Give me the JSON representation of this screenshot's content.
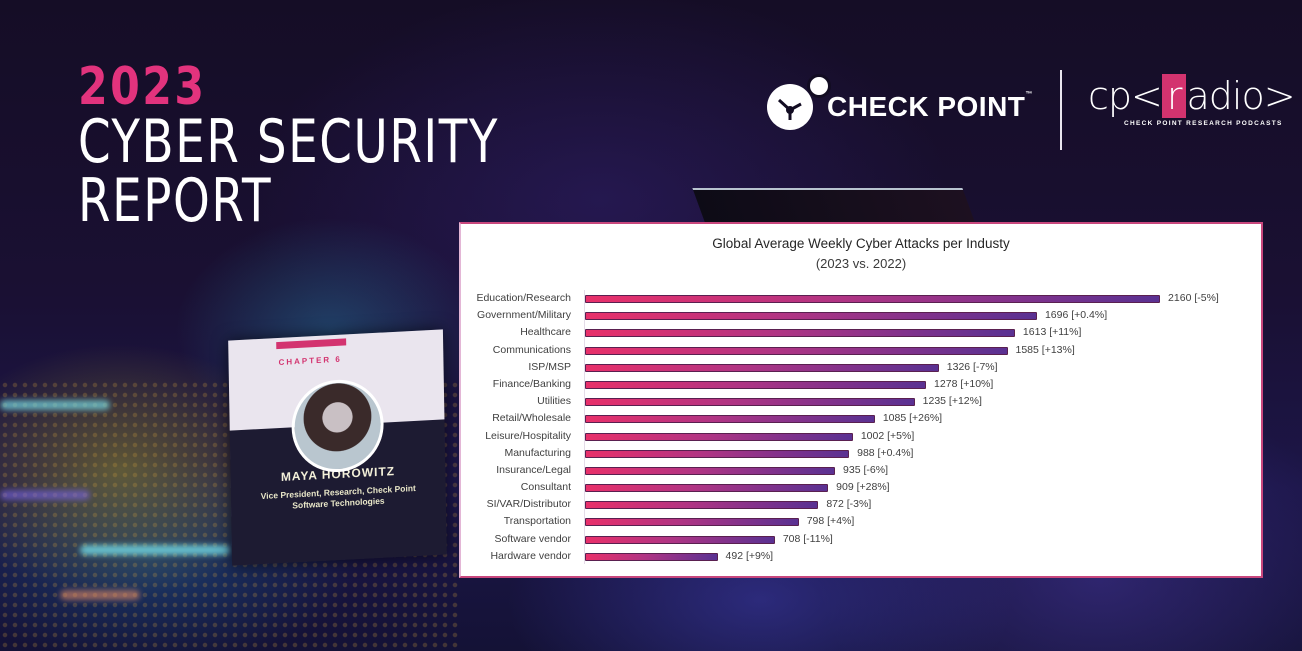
{
  "header": {
    "year": "2023",
    "title_line1": "CYBER SECURITY",
    "title_line2": "REPORT"
  },
  "logos": {
    "checkpoint": {
      "name": "CHECK POINT",
      "tm": "™",
      "icon": "checkpoint-logo-icon"
    },
    "radio": {
      "prefix": "cp<",
      "highlight": "r",
      "suffix": "adio>",
      "tagline": "CHECK POINT RESEARCH PODCASTS"
    }
  },
  "book": {
    "chapter": "CHAPTER 6",
    "name": "MAYA HOROWITZ",
    "role": "Vice President, Research, Check Point Software Technologies"
  },
  "colors": {
    "accent_pink": "#e2337d",
    "bar_start": "#e8306a",
    "bar_end": "#5a3192",
    "panel_border": "#c8477d"
  },
  "chart_data": {
    "type": "bar",
    "orientation": "horizontal",
    "title": "Global Average Weekly Cyber Attacks per Industy",
    "subtitle": "(2023 vs. 2022)",
    "xlabel": "",
    "ylabel": "",
    "grid": false,
    "legend": null,
    "xlim": [
      0,
      2400
    ],
    "categories": [
      "Education/Research",
      "Government/Military",
      "Healthcare",
      "Communications",
      "ISP/MSP",
      "Finance/Banking",
      "Utilities",
      "Retail/Wholesale",
      "Leisure/Hospitality",
      "Manufacturing",
      "Insurance/Legal",
      "Consultant",
      "SI/VAR/Distributor",
      "Transportation",
      "Software vendor",
      "Hardware vendor"
    ],
    "values": [
      2160,
      1696,
      1613,
      1585,
      1326,
      1278,
      1235,
      1085,
      1002,
      988,
      935,
      909,
      872,
      798,
      708,
      492
    ],
    "change_vs_2022": [
      "-5%",
      "+0.4%",
      "+11%",
      "+13%",
      "-7%",
      "+10%",
      "+12%",
      "+26%",
      "+5%",
      "+0.4%",
      "-6%",
      "+28%",
      "-3%",
      "+4%",
      "-11%",
      "+9%"
    ],
    "data_labels": [
      "2160 [-5%]",
      "1696 [+0.4%]",
      "1613 [+11%]",
      "1585 [+13%]",
      "1326 [-7%]",
      "1278 [+10%]",
      "1235 [+12%]",
      "1085 [+26%]",
      "1002 [+5%]",
      "988 [+0.4%]",
      "935 [-6%]",
      "909 [+28%]",
      "872 [-3%]",
      "798 [+4%]",
      "708 [-11%]",
      "492 [+9%]"
    ]
  }
}
